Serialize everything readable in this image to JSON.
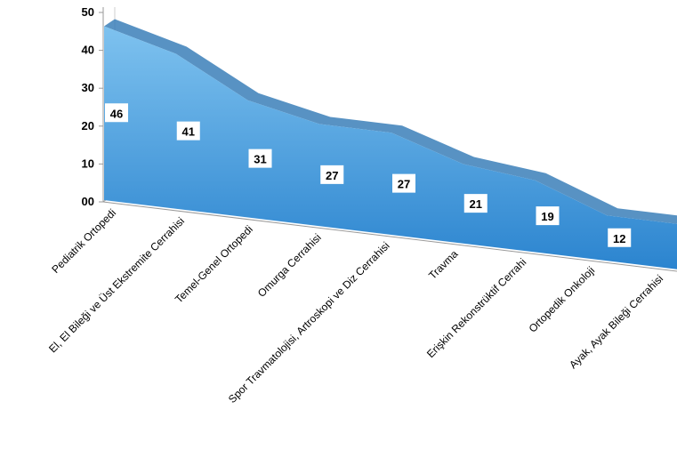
{
  "chart_data": {
    "type": "area",
    "title": "",
    "xlabel": "",
    "ylabel": "",
    "ylim": [
      0,
      50
    ],
    "yticks": [
      "00",
      "10",
      "20",
      "30",
      "40",
      "50"
    ],
    "categories": [
      "Pediatrik Ortopedi",
      "El, El Bileği ve Üst Ekstremite Cerrahisi",
      "Temel-Genel Ortopedi",
      "Omurga Cerrahisi",
      "Spor Travmatolojisi,  Artroskopi ve Diz Cerrahisi",
      "Travma",
      "Erişkin Rekonstrüktif Cerrahi",
      "Ortopedik Onkoloji",
      "Ayak, Ayak Bileği Cerrahisi"
    ],
    "values": [
      46,
      41,
      31,
      27,
      27,
      21,
      19,
      12,
      12
    ],
    "data_labels": [
      "46",
      "41",
      "31",
      "27",
      "27",
      "21",
      "19",
      "12",
      "12"
    ],
    "grid": false,
    "legend": "none",
    "colors": {
      "area_top": "#7ec2ef",
      "area_bottom": "#2b84cf",
      "ridge": "#3b7fb9",
      "axis": "#9a9a9a",
      "label_bg": "#ffffff"
    }
  }
}
